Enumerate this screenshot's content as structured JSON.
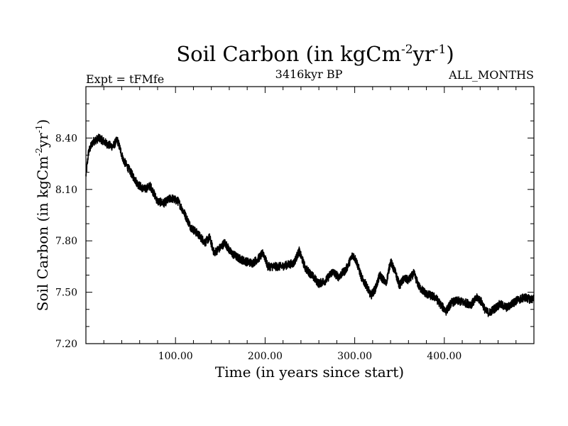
{
  "chart_data": {
    "type": "line",
    "title": {
      "base": "Soil Carbon (in kgCm",
      "sup1": "-2",
      "mid": "yr",
      "sup2": "-1",
      "end": ")"
    },
    "subtitle_left": "Expt = tFMfe",
    "subtitle_center": "3416kyr BP",
    "subtitle_right": "ALL_MONTHS",
    "xlabel": "Time (in years since start)",
    "ylabel": {
      "base": "Soil Carbon (in kgCm",
      "sup1": "-2",
      "mid": "yr",
      "sup2": "-1",
      "end": ")"
    },
    "xlim": [
      0,
      500
    ],
    "ylim": [
      7.2,
      8.7
    ],
    "x_ticks": [
      100,
      200,
      300,
      400
    ],
    "x_tick_labels": [
      "100.00",
      "200.00",
      "300.00",
      "400.00"
    ],
    "y_ticks": [
      7.2,
      7.5,
      7.8,
      8.1,
      8.4
    ],
    "y_tick_labels": [
      "7.20",
      "7.50",
      "7.80",
      "8.10",
      "8.40"
    ],
    "series_color": "#000000",
    "series": [
      {
        "name": "Soil Carbon",
        "x": [
          0,
          3,
          8,
          15,
          25,
          30,
          35,
          42,
          50,
          58,
          65,
          72,
          80,
          87,
          95,
          103,
          110,
          117,
          125,
          133,
          138,
          143,
          150,
          155,
          162,
          170,
          178,
          186,
          193,
          198,
          203,
          210,
          218,
          225,
          232,
          238,
          245,
          252,
          260,
          268,
          275,
          282,
          290,
          298,
          302,
          308,
          313,
          318,
          323,
          328,
          335,
          340,
          345,
          350,
          355,
          360,
          366,
          372,
          380,
          390,
          397,
          402,
          408,
          415,
          422,
          430,
          437,
          442,
          446,
          450,
          455,
          462,
          470,
          480,
          490,
          495,
          500
        ],
        "y": [
          8.18,
          8.32,
          8.38,
          8.4,
          8.36,
          8.35,
          8.39,
          8.27,
          8.2,
          8.13,
          8.1,
          8.12,
          8.03,
          8.02,
          8.05,
          8.03,
          7.96,
          7.88,
          7.84,
          7.79,
          7.82,
          7.73,
          7.76,
          7.79,
          7.73,
          7.7,
          7.68,
          7.67,
          7.7,
          7.73,
          7.65,
          7.65,
          7.65,
          7.66,
          7.67,
          7.74,
          7.64,
          7.6,
          7.55,
          7.57,
          7.62,
          7.59,
          7.63,
          7.72,
          7.68,
          7.58,
          7.54,
          7.48,
          7.52,
          7.6,
          7.55,
          7.68,
          7.62,
          7.54,
          7.58,
          7.57,
          7.61,
          7.53,
          7.49,
          7.47,
          7.42,
          7.39,
          7.44,
          7.45,
          7.44,
          7.43,
          7.47,
          7.44,
          7.39,
          7.38,
          7.4,
          7.43,
          7.41,
          7.45,
          7.47,
          7.46,
          7.46
        ]
      }
    ]
  }
}
